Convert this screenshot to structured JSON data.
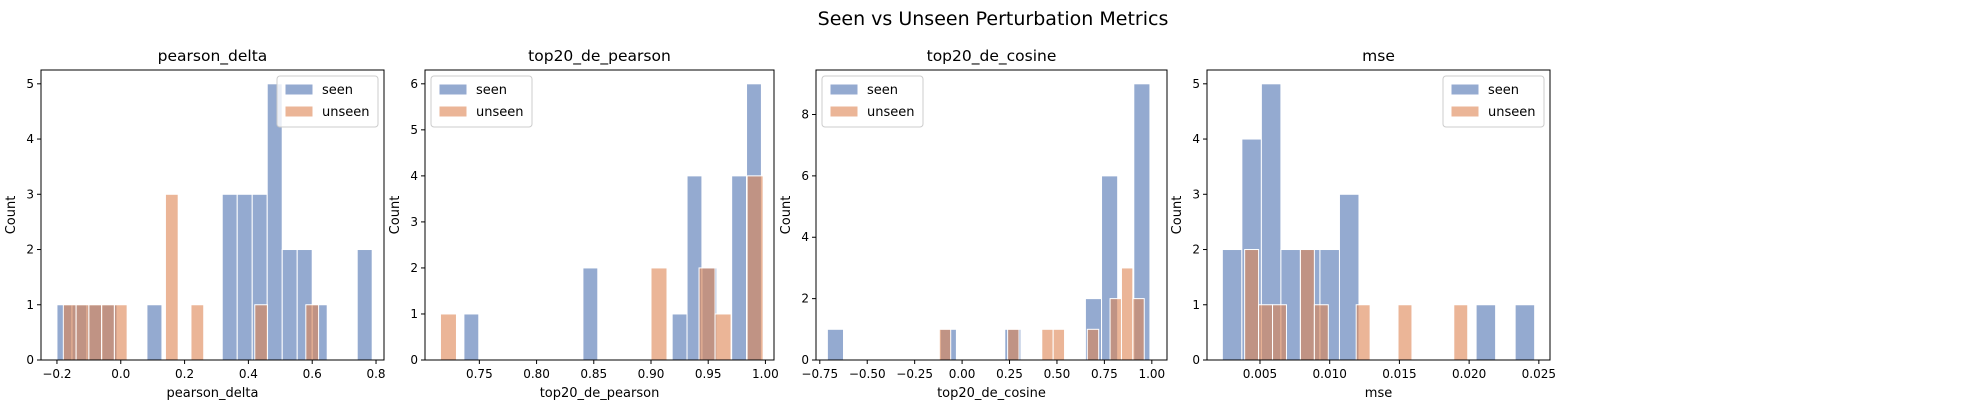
{
  "title": "Seen vs Unseen Perturbation Metrics",
  "colors": {
    "seen": "#4c72b0",
    "unseen": "#dd8452",
    "edge": "#ffffff",
    "frame": "#000000"
  },
  "chart_data": [
    {
      "type": "histogram",
      "title": "pearson_delta",
      "xlabel": "pearson_delta",
      "ylabel": "Count",
      "xlim": [
        -0.25,
        0.825
      ],
      "ylim": [
        0,
        5.25
      ],
      "xticks": [
        -0.2,
        0.0,
        0.2,
        0.4,
        0.6,
        0.8
      ],
      "xtick_labels": [
        "−0.2",
        "0.0",
        "0.2",
        "0.4",
        "0.6",
        "0.8"
      ],
      "yticks": [
        0,
        1,
        2,
        3,
        4,
        5
      ],
      "legend_position": "top-right",
      "series": [
        {
          "name": "seen",
          "bins": [
            {
              "start": -0.2,
              "end": -0.153,
              "count": 1
            },
            {
              "start": -0.153,
              "end": -0.106,
              "count": 1
            },
            {
              "start": -0.106,
              "end": -0.059,
              "count": 1
            },
            {
              "start": -0.059,
              "end": -0.012,
              "count": 1
            },
            {
              "start": 0.082,
              "end": 0.129,
              "count": 1
            },
            {
              "start": 0.318,
              "end": 0.365,
              "count": 3
            },
            {
              "start": 0.365,
              "end": 0.412,
              "count": 3
            },
            {
              "start": 0.412,
              "end": 0.459,
              "count": 3
            },
            {
              "start": 0.459,
              "end": 0.506,
              "count": 5
            },
            {
              "start": 0.506,
              "end": 0.553,
              "count": 2
            },
            {
              "start": 0.553,
              "end": 0.6,
              "count": 2
            },
            {
              "start": 0.6,
              "end": 0.647,
              "count": 1
            },
            {
              "start": 0.741,
              "end": 0.788,
              "count": 2
            }
          ]
        },
        {
          "name": "unseen",
          "bins": [
            {
              "start": -0.18,
              "end": -0.14,
              "count": 1
            },
            {
              "start": -0.14,
              "end": -0.1,
              "count": 1
            },
            {
              "start": -0.1,
              "end": -0.06,
              "count": 1
            },
            {
              "start": -0.06,
              "end": -0.02,
              "count": 1
            },
            {
              "start": -0.02,
              "end": 0.02,
              "count": 1
            },
            {
              "start": 0.14,
              "end": 0.18,
              "count": 3
            },
            {
              "start": 0.22,
              "end": 0.26,
              "count": 1
            },
            {
              "start": 0.42,
              "end": 0.46,
              "count": 1
            },
            {
              "start": 0.58,
              "end": 0.62,
              "count": 1
            }
          ]
        }
      ]
    },
    {
      "type": "histogram",
      "title": "top20_de_pearson",
      "xlabel": "top20_de_pearson",
      "ylabel": "Count",
      "xlim": [
        0.7025,
        1.0075
      ],
      "ylim": [
        0,
        6.3
      ],
      "xticks": [
        0.75,
        0.8,
        0.85,
        0.9,
        0.95,
        1.0
      ],
      "xtick_labels": [
        "0.75",
        "0.80",
        "0.85",
        "0.90",
        "0.95",
        "1.00"
      ],
      "yticks": [
        0,
        1,
        2,
        3,
        4,
        5,
        6
      ],
      "legend_position": "top-left",
      "series": [
        {
          "name": "seen",
          "bins": [
            {
              "start": 0.7365,
              "end": 0.7495,
              "count": 1
            },
            {
              "start": 0.8405,
              "end": 0.8535,
              "count": 2
            },
            {
              "start": 0.9185,
              "end": 0.9315,
              "count": 1
            },
            {
              "start": 0.9315,
              "end": 0.9445,
              "count": 4
            },
            {
              "start": 0.9445,
              "end": 0.9575,
              "count": 2
            },
            {
              "start": 0.9705,
              "end": 0.9835,
              "count": 4
            },
            {
              "start": 0.9835,
              "end": 0.9965,
              "count": 6
            }
          ]
        },
        {
          "name": "unseen",
          "bins": [
            {
              "start": 0.716,
              "end": 0.73,
              "count": 1
            },
            {
              "start": 0.9,
              "end": 0.914,
              "count": 2
            },
            {
              "start": 0.942,
              "end": 0.956,
              "count": 2
            },
            {
              "start": 0.956,
              "end": 0.97,
              "count": 1
            },
            {
              "start": 0.984,
              "end": 0.998,
              "count": 4
            }
          ]
        }
      ]
    },
    {
      "type": "histogram",
      "title": "top20_de_cosine",
      "xlabel": "top20_de_cosine",
      "ylabel": "Count",
      "xlim": [
        -0.77,
        1.08
      ],
      "ylim": [
        0,
        9.45
      ],
      "xticks": [
        -0.75,
        -0.5,
        -0.25,
        0.0,
        0.25,
        0.5,
        0.75,
        1.0
      ],
      "xtick_labels": [
        "−0.75",
        "−0.50",
        "−0.25",
        "0.00",
        "0.25",
        "0.50",
        "0.75",
        "1.00"
      ],
      "yticks": [
        0,
        2,
        4,
        6,
        8
      ],
      "legend_position": "top-left",
      "series": [
        {
          "name": "seen",
          "bins": [
            {
              "start": -0.71,
              "end": -0.625,
              "count": 1
            },
            {
              "start": -0.115,
              "end": -0.03,
              "count": 1
            },
            {
              "start": 0.225,
              "end": 0.31,
              "count": 1
            },
            {
              "start": 0.65,
              "end": 0.735,
              "count": 2
            },
            {
              "start": 0.735,
              "end": 0.82,
              "count": 6
            },
            {
              "start": 0.905,
              "end": 0.99,
              "count": 9
            }
          ]
        },
        {
          "name": "unseen",
          "bins": [
            {
              "start": -0.12,
              "end": -0.06,
              "count": 1
            },
            {
              "start": 0.24,
              "end": 0.3,
              "count": 1
            },
            {
              "start": 0.42,
              "end": 0.48,
              "count": 1
            },
            {
              "start": 0.48,
              "end": 0.54,
              "count": 1
            },
            {
              "start": 0.66,
              "end": 0.72,
              "count": 1
            },
            {
              "start": 0.78,
              "end": 0.84,
              "count": 2
            },
            {
              "start": 0.84,
              "end": 0.9,
              "count": 3
            },
            {
              "start": 0.9,
              "end": 0.96,
              "count": 2
            }
          ]
        }
      ]
    },
    {
      "type": "histogram",
      "title": "mse",
      "xlabel": "mse",
      "ylabel": "Count",
      "xlim": [
        0.0012,
        0.0258
      ],
      "ylim": [
        0,
        5.25
      ],
      "xticks": [
        0.005,
        0.01,
        0.015,
        0.02,
        0.025
      ],
      "xtick_labels": [
        "0.005",
        "0.010",
        "0.015",
        "0.020",
        "0.025"
      ],
      "yticks": [
        0,
        1,
        2,
        3,
        4,
        5
      ],
      "legend_position": "top-right",
      "series": [
        {
          "name": "seen",
          "bins": [
            {
              "start": 0.0023,
              "end": 0.0037,
              "count": 2
            },
            {
              "start": 0.0037,
              "end": 0.0051,
              "count": 4
            },
            {
              "start": 0.0051,
              "end": 0.0065,
              "count": 5
            },
            {
              "start": 0.0065,
              "end": 0.0079,
              "count": 2
            },
            {
              "start": 0.0079,
              "end": 0.0093,
              "count": 2
            },
            {
              "start": 0.0093,
              "end": 0.0107,
              "count": 2
            },
            {
              "start": 0.0107,
              "end": 0.0121,
              "count": 3
            },
            {
              "start": 0.0205,
              "end": 0.0219,
              "count": 1
            },
            {
              "start": 0.0233,
              "end": 0.0247,
              "count": 1
            }
          ]
        },
        {
          "name": "unseen",
          "bins": [
            {
              "start": 0.0039,
              "end": 0.0049,
              "count": 2
            },
            {
              "start": 0.0049,
              "end": 0.0059,
              "count": 1
            },
            {
              "start": 0.0059,
              "end": 0.0069,
              "count": 1
            },
            {
              "start": 0.0079,
              "end": 0.0089,
              "count": 2
            },
            {
              "start": 0.0089,
              "end": 0.0099,
              "count": 1
            },
            {
              "start": 0.0119,
              "end": 0.0129,
              "count": 1
            },
            {
              "start": 0.0149,
              "end": 0.0159,
              "count": 1
            },
            {
              "start": 0.0189,
              "end": 0.0199,
              "count": 1
            }
          ]
        }
      ]
    }
  ]
}
